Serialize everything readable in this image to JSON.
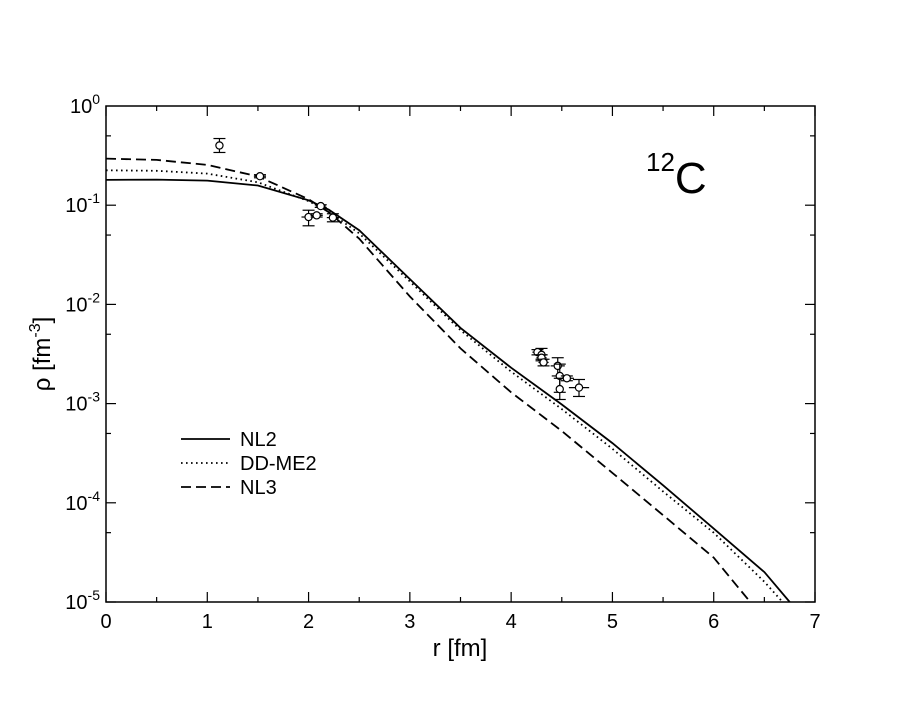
{
  "chart_data": {
    "type": "line",
    "annotation": {
      "mass_number": "12",
      "symbol": "C"
    },
    "xlabel": "r [fm]",
    "ylabel": {
      "prefix": "ρ  [fm",
      "exponent": "-3",
      "suffix": "]"
    },
    "xlim": [
      0,
      7
    ],
    "ylim": [
      1e-05,
      1
    ],
    "yscale": "log",
    "x_ticks": [
      0,
      1,
      2,
      3,
      4,
      5,
      6,
      7
    ],
    "x_tick_labels": [
      "0",
      "1",
      "2",
      "3",
      "4",
      "5",
      "6",
      "7"
    ],
    "y_ticks": [
      {
        "value": 1,
        "base": "10",
        "exp": "0"
      },
      {
        "value": 0.1,
        "base": "10",
        "exp": "-1"
      },
      {
        "value": 0.01,
        "base": "10",
        "exp": "-2"
      },
      {
        "value": 0.001,
        "base": "10",
        "exp": "-3"
      },
      {
        "value": 0.0001,
        "base": "10",
        "exp": "-4"
      },
      {
        "value": 1e-05,
        "base": "10",
        "exp": "-5"
      }
    ],
    "grid": false,
    "legend_position": "left",
    "series": [
      {
        "name": "NL2",
        "style": "solid",
        "x": [
          0,
          0.5,
          1.0,
          1.5,
          2.0,
          2.2,
          2.5,
          3.0,
          3.5,
          4.0,
          4.5,
          5.0,
          5.5,
          6.0,
          6.5,
          6.75
        ],
        "y": [
          0.18,
          0.181,
          0.177,
          0.158,
          0.112,
          0.09,
          0.056,
          0.018,
          0.0058,
          0.0023,
          0.00098,
          0.0004,
          0.00015,
          5.5e-05,
          2e-05,
          1e-05
        ]
      },
      {
        "name": "DD-ME2",
        "style": "dotted",
        "x": [
          0,
          0.5,
          1.0,
          1.5,
          2.0,
          2.2,
          2.5,
          3.0,
          3.5,
          4.0,
          4.5,
          5.0,
          5.5,
          6.0,
          6.5,
          6.68
        ],
        "y": [
          0.225,
          0.222,
          0.208,
          0.17,
          0.11,
          0.086,
          0.052,
          0.017,
          0.0055,
          0.0021,
          0.00088,
          0.00035,
          0.00013,
          5e-05,
          1.6e-05,
          1e-05
        ]
      },
      {
        "name": "NL3",
        "style": "dashed",
        "x": [
          0,
          0.5,
          1.0,
          1.5,
          2.0,
          2.2,
          2.5,
          3.0,
          3.5,
          4.0,
          4.5,
          5.0,
          5.5,
          6.0,
          6.36
        ],
        "y": [
          0.295,
          0.286,
          0.255,
          0.195,
          0.115,
          0.085,
          0.046,
          0.012,
          0.0036,
          0.0013,
          0.00053,
          0.0002,
          7.5e-05,
          2.8e-05,
          1e-05
        ]
      }
    ],
    "experimental_points": [
      {
        "x": 1.12,
        "y": 0.4,
        "y_lo": 0.34,
        "y_hi": 0.47,
        "x_err": 0
      },
      {
        "x": 1.52,
        "y": 0.196,
        "y_lo": 0.189,
        "y_hi": 0.203,
        "x_err": 0.06
      },
      {
        "x": 2.0,
        "y": 0.076,
        "y_lo": 0.062,
        "y_hi": 0.089,
        "x_err": 0.07
      },
      {
        "x": 2.08,
        "y": 0.079,
        "y_lo": 0.076,
        "y_hi": 0.082,
        "x_err": 0.06
      },
      {
        "x": 2.12,
        "y": 0.098,
        "y_lo": 0.095,
        "y_hi": 0.101,
        "x_err": 0.05
      },
      {
        "x": 2.24,
        "y": 0.075,
        "y_lo": 0.068,
        "y_hi": 0.082,
        "x_err": 0.06
      },
      {
        "x": 4.26,
        "y": 0.0033,
        "y_lo": 0.0031,
        "y_hi": 0.0035,
        "x_err": 0.05
      },
      {
        "x": 4.3,
        "y": 0.0031,
        "y_lo": 0.0028,
        "y_hi": 0.0036,
        "x_err": 0.06
      },
      {
        "x": 4.3,
        "y": 0.0029,
        "y_lo": 0.0027,
        "y_hi": 0.0031,
        "x_err": 0.05
      },
      {
        "x": 4.32,
        "y": 0.0026,
        "y_lo": 0.0024,
        "y_hi": 0.0028,
        "x_err": 0.05
      },
      {
        "x": 4.46,
        "y": 0.0024,
        "y_lo": 0.0019,
        "y_hi": 0.0029,
        "x_err": 0.07
      },
      {
        "x": 4.48,
        "y": 0.0019,
        "y_lo": 0.0013,
        "y_hi": 0.0025,
        "x_err": 0
      },
      {
        "x": 4.48,
        "y": 0.0014,
        "y_lo": 0.0011,
        "y_hi": 0.0018,
        "x_err": 0
      },
      {
        "x": 4.55,
        "y": 0.0018,
        "y_lo": 0.0017,
        "y_hi": 0.0019,
        "x_err": 0.07
      },
      {
        "x": 4.67,
        "y": 0.00145,
        "y_lo": 0.00118,
        "y_hi": 0.00175,
        "x_err": 0.1
      }
    ]
  }
}
